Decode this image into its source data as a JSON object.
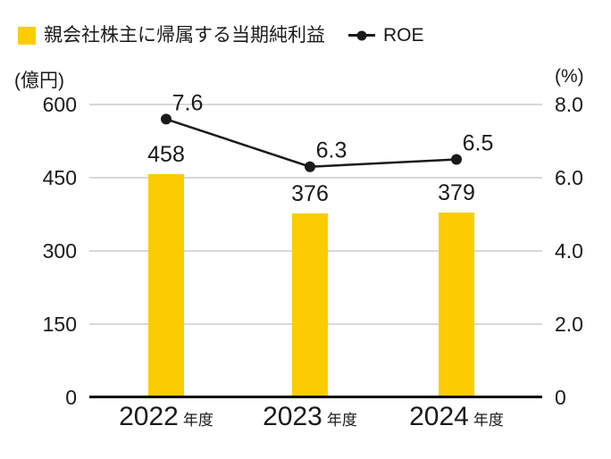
{
  "legend": {
    "items": [
      {
        "label": "親会社株主に帰属する当期純利益",
        "marker": "bar-swatch",
        "color": "#FBCD00"
      },
      {
        "label": "ROE",
        "marker": "line-dot",
        "color": "#1A1A1A"
      }
    ]
  },
  "axes": {
    "left_unit": "(億円)",
    "right_unit": "(%)",
    "left_ticks": [
      "600",
      "450",
      "300",
      "150",
      "0"
    ],
    "right_ticks": [
      "8.0",
      "6.0",
      "4.0",
      "2.0",
      "0"
    ]
  },
  "x_axis": {
    "categories": [
      {
        "year": "2022",
        "suffix": "年度"
      },
      {
        "year": "2023",
        "suffix": "年度"
      },
      {
        "year": "2024",
        "suffix": "年度"
      }
    ]
  },
  "chart_data": {
    "type": "bar",
    "categories": [
      "2022年度",
      "2023年度",
      "2024年度"
    ],
    "series": [
      {
        "name": "親会社株主に帰属する当期純利益",
        "type": "bar",
        "axis": "left",
        "unit": "億円",
        "values": [
          458,
          376,
          379
        ],
        "value_labels": [
          "458",
          "376",
          "379"
        ],
        "color": "#FBCD00"
      },
      {
        "name": "ROE",
        "type": "line",
        "axis": "right",
        "unit": "%",
        "values": [
          7.6,
          6.3,
          6.5
        ],
        "value_labels": [
          "7.6",
          "6.3",
          "6.5"
        ],
        "color": "#1A1A1A"
      }
    ],
    "left_axis": {
      "label": "(億円)",
      "min": 0,
      "max": 600,
      "ticks": [
        600,
        450,
        300,
        150,
        0
      ]
    },
    "right_axis": {
      "label": "(%)",
      "min": 0,
      "max": 8,
      "ticks": [
        8.0,
        6.0,
        4.0,
        2.0,
        0
      ]
    },
    "grid": true,
    "legend_position": "top-left"
  }
}
